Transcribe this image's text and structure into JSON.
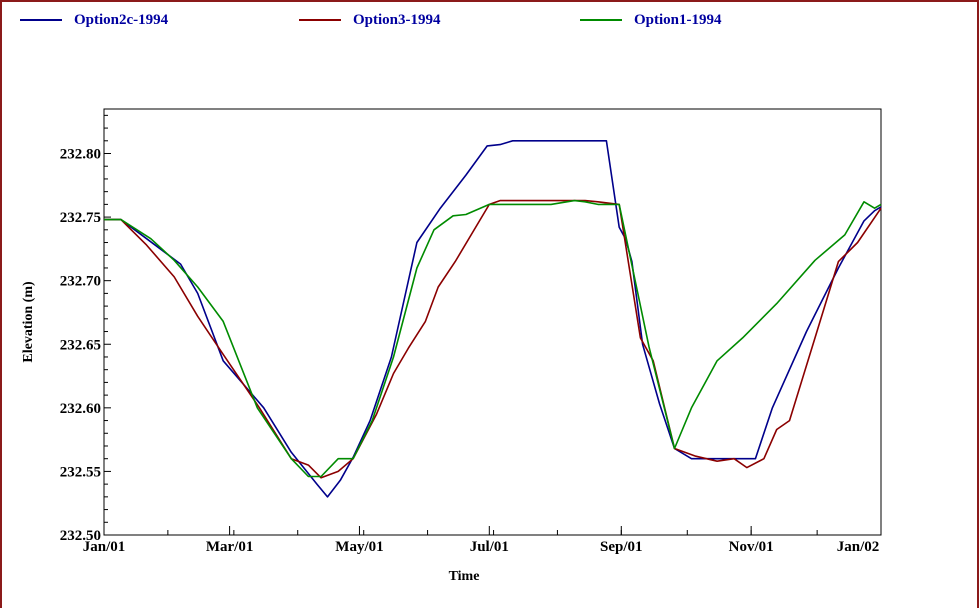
{
  "chart_data": {
    "type": "line",
    "xlabel": "Time",
    "ylabel": "Elevation (m)",
    "x_tick_labels": [
      "Jan/01",
      "Mar/01",
      "May/01",
      "Jul/01",
      "Sep/01",
      "Nov/01",
      "Jan/02"
    ],
    "x_tick_days": [
      0,
      59,
      120,
      181,
      243,
      304,
      365
    ],
    "x_range_days": [
      0,
      365
    ],
    "ylim": [
      232.5,
      232.835
    ],
    "y_ticks": [
      232.5,
      232.55,
      232.6,
      232.65,
      232.7,
      232.75,
      232.8
    ],
    "y_tick_labels": [
      "232.50",
      "232.55",
      "232.60",
      "232.65",
      "232.70",
      "232.75",
      "232.80"
    ],
    "grid": false,
    "legend_position": "top",
    "series": [
      {
        "name": "Option2c-1994",
        "color": "#00008b",
        "points": [
          [
            0,
            232.748
          ],
          [
            8,
            232.748
          ],
          [
            20,
            232.733
          ],
          [
            36,
            232.713
          ],
          [
            44,
            232.69
          ],
          [
            56,
            232.637
          ],
          [
            75,
            232.6
          ],
          [
            88,
            232.565
          ],
          [
            100,
            232.54
          ],
          [
            105,
            232.53
          ],
          [
            111,
            232.543
          ],
          [
            117,
            232.561
          ],
          [
            125,
            232.59
          ],
          [
            135,
            232.64
          ],
          [
            147,
            232.73
          ],
          [
            158,
            232.757
          ],
          [
            170,
            232.783
          ],
          [
            180,
            232.806
          ],
          [
            186,
            232.807
          ],
          [
            192,
            232.81
          ],
          [
            200,
            232.81
          ],
          [
            210,
            232.81
          ],
          [
            230,
            232.81
          ],
          [
            236,
            232.81
          ],
          [
            242,
            232.742
          ],
          [
            245,
            232.733
          ],
          [
            248,
            232.715
          ],
          [
            253,
            232.65
          ],
          [
            261,
            232.603
          ],
          [
            268,
            232.568
          ],
          [
            276,
            232.56
          ],
          [
            288,
            232.56
          ],
          [
            300,
            232.56
          ],
          [
            306,
            232.56
          ],
          [
            314,
            232.6
          ],
          [
            330,
            232.66
          ],
          [
            345,
            232.71
          ],
          [
            357,
            232.747
          ],
          [
            362,
            232.755
          ],
          [
            365,
            232.758
          ]
        ]
      },
      {
        "name": "Option3-1994",
        "color": "#8b0000",
        "points": [
          [
            0,
            232.748
          ],
          [
            8,
            232.748
          ],
          [
            20,
            232.728
          ],
          [
            33,
            232.703
          ],
          [
            44,
            232.672
          ],
          [
            56,
            232.642
          ],
          [
            73,
            232.6
          ],
          [
            88,
            232.56
          ],
          [
            96,
            232.555
          ],
          [
            102,
            232.545
          ],
          [
            110,
            232.55
          ],
          [
            117,
            232.56
          ],
          [
            128,
            232.595
          ],
          [
            136,
            232.627
          ],
          [
            143,
            232.647
          ],
          [
            151,
            232.668
          ],
          [
            157,
            232.695
          ],
          [
            165,
            232.715
          ],
          [
            181,
            232.76
          ],
          [
            186,
            232.763
          ],
          [
            200,
            232.763
          ],
          [
            210,
            232.763
          ],
          [
            221,
            232.763
          ],
          [
            226,
            232.763
          ],
          [
            232,
            232.762
          ],
          [
            242,
            232.76
          ],
          [
            252,
            232.655
          ],
          [
            258,
            232.637
          ],
          [
            268,
            232.568
          ],
          [
            278,
            232.562
          ],
          [
            288,
            232.558
          ],
          [
            296,
            232.56
          ],
          [
            302,
            232.553
          ],
          [
            310,
            232.56
          ],
          [
            316,
            232.583
          ],
          [
            322,
            232.59
          ],
          [
            334,
            232.655
          ],
          [
            345,
            232.715
          ],
          [
            354,
            232.73
          ],
          [
            365,
            232.757
          ]
        ]
      },
      {
        "name": "Option1-1994",
        "color": "#008b00",
        "points": [
          [
            0,
            232.748
          ],
          [
            8,
            232.748
          ],
          [
            22,
            232.733
          ],
          [
            33,
            232.716
          ],
          [
            44,
            232.695
          ],
          [
            56,
            232.668
          ],
          [
            72,
            232.6
          ],
          [
            88,
            232.56
          ],
          [
            96,
            232.546
          ],
          [
            102,
            232.546
          ],
          [
            110,
            232.56
          ],
          [
            117,
            232.56
          ],
          [
            126,
            232.59
          ],
          [
            136,
            232.64
          ],
          [
            147,
            232.71
          ],
          [
            155,
            232.74
          ],
          [
            164,
            232.751
          ],
          [
            170,
            232.752
          ],
          [
            181,
            232.76
          ],
          [
            188,
            232.76
          ],
          [
            200,
            232.76
          ],
          [
            210,
            232.76
          ],
          [
            221,
            232.763
          ],
          [
            226,
            232.762
          ],
          [
            232,
            232.76
          ],
          [
            242,
            232.76
          ],
          [
            256,
            232.648
          ],
          [
            268,
            232.568
          ],
          [
            276,
            232.6
          ],
          [
            288,
            232.637
          ],
          [
            300,
            232.655
          ],
          [
            316,
            232.682
          ],
          [
            334,
            232.716
          ],
          [
            348,
            232.736
          ],
          [
            357,
            232.762
          ],
          [
            362,
            232.757
          ],
          [
            365,
            232.76
          ]
        ]
      }
    ]
  }
}
